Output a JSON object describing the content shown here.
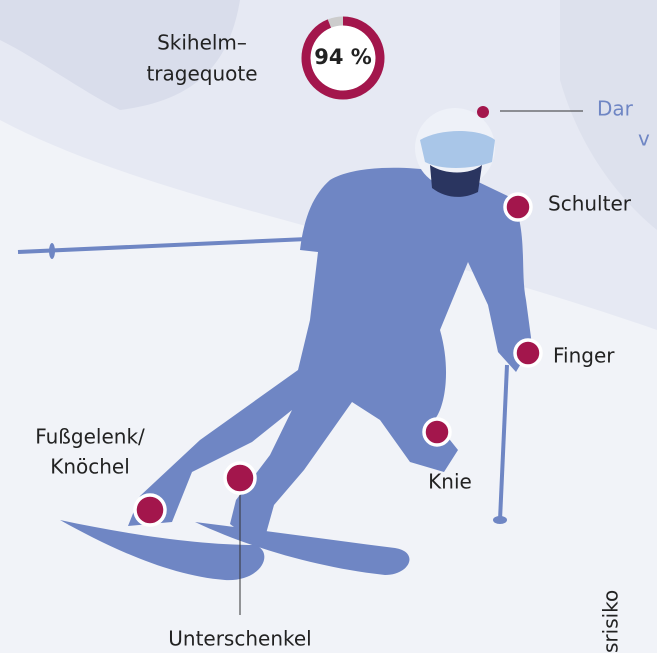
{
  "helmet_quote": {
    "label": [
      "Skihelm–",
      "tragequote"
    ],
    "value": 94,
    "value_label": "94 %",
    "lim": [
      0,
      100
    ]
  },
  "callouts": {
    "head": [
      "Dar",
      "v"
    ],
    "shoulder": "Schulter",
    "finger": "Finger",
    "ankle": [
      "Fußgelenk/",
      "Knöchel"
    ],
    "knee": "Knie",
    "lower_leg": "Unterschenkel"
  },
  "side_label": "srisiko"
}
